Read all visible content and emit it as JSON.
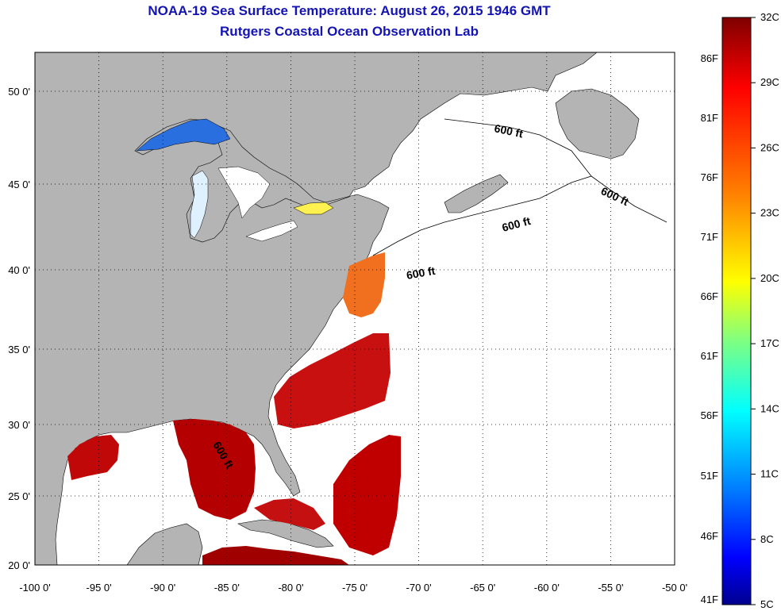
{
  "title": {
    "line1": "NOAA-19 Sea Surface Temperature:  August 26, 2015 1946 GMT",
    "line2": "Rutgers Coastal Ocean Observation Lab"
  },
  "colors": {
    "title": "#1414b4",
    "land": "#b4b4b4",
    "ocean_no_data": "#ffffff",
    "grid": "#000000"
  },
  "axes": {
    "lon_labels": [
      "-100 0'",
      "-95 0'",
      "-90 0'",
      "-85 0'",
      "-80 0'",
      "-75 0'",
      "-70 0'",
      "-65 0'",
      "-60 0'",
      "-55 0'",
      "-50 0'"
    ],
    "lat_labels": [
      "50 0'",
      "45 0'",
      "40 0'",
      "35 0'",
      "30 0'",
      "25 0'",
      "20 0'"
    ]
  },
  "isobath_labels": [
    "600 ft",
    "600 ft",
    "600 ft",
    "600 ft",
    "600 ft"
  ],
  "colorbar": {
    "celsius_labels": [
      "32C",
      "29C",
      "26C",
      "23C",
      "20C",
      "17C",
      "14C",
      "11C",
      "8C",
      "5C"
    ],
    "fahrenheit_labels": [
      "86F",
      "81F",
      "76F",
      "71F",
      "66F",
      "61F",
      "56F",
      "51F",
      "46F",
      "41F"
    ],
    "gradient": [
      "#7f0000",
      "#ff0000",
      "#ff8000",
      "#ffff00",
      "#80ff80",
      "#00ffff",
      "#0080ff",
      "#0000ff",
      "#00008f"
    ]
  }
}
